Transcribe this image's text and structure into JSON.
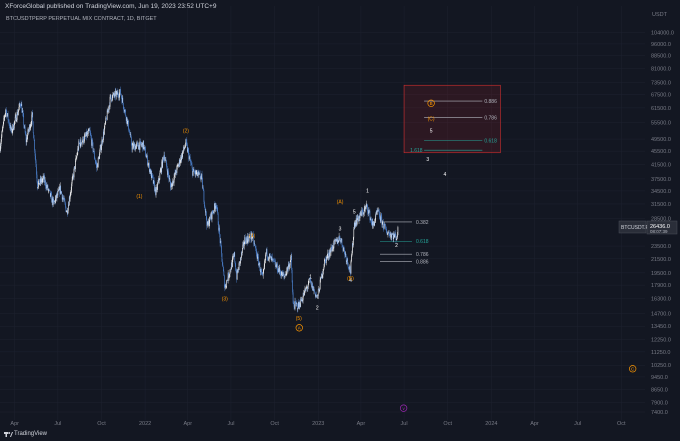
{
  "header": {
    "published_by": "XForceGlobal published on TradingView.com, Jun 19, 2023 23:52 UTC+9",
    "symbol_title": "BTCUSDTPERP PERPETUAL MIX CONTRACT, 1D, BITGET"
  },
  "footer": {
    "brand": "TradingView"
  },
  "price_tag": {
    "symbol": "BTCUSDT.P",
    "price": "26436.0",
    "countdown": "08:07:39"
  },
  "chart_data": {
    "type": "candlestick",
    "title": "BTCUSDTPERP PERPETUAL MIX CONTRACT, 1D, BITGET",
    "ylabel": "USDT",
    "y_scale": "log",
    "ylim": [
      7000,
      125000
    ],
    "xlim": [
      "2021-03-01",
      "2024-11-20"
    ],
    "y_ticks": [
      "104000.0",
      "96000.0",
      "88500.0",
      "81000.0",
      "73500.0",
      "67500.0",
      "61500.0",
      "55500.0",
      "49500.0",
      "45500.0",
      "41500.0",
      "37500.0",
      "34500.0",
      "31500.0",
      "28500.0",
      "23500.0",
      "21500.0",
      "19500.0",
      "17900.0",
      "16300.0",
      "14700.0",
      "13450.0",
      "12250.0",
      "11250.0",
      "10250.0",
      "9450.0",
      "8650.0",
      "7900.0",
      "7400.0"
    ],
    "x_ticks": [
      {
        "label": "Apr",
        "date": "2021-04-01"
      },
      {
        "label": "Jul",
        "date": "2021-07-01"
      },
      {
        "label": "Oct",
        "date": "2021-10-01"
      },
      {
        "label": "2022",
        "date": "2022-01-01"
      },
      {
        "label": "Apr",
        "date": "2022-04-01"
      },
      {
        "label": "Jul",
        "date": "2022-07-01"
      },
      {
        "label": "Oct",
        "date": "2022-10-01"
      },
      {
        "label": "2023",
        "date": "2023-01-01"
      },
      {
        "label": "Apr",
        "date": "2023-04-01"
      },
      {
        "label": "Jul",
        "date": "2023-07-01"
      },
      {
        "label": "Oct",
        "date": "2023-10-01"
      },
      {
        "label": "2024",
        "date": "2024-01-01"
      },
      {
        "label": "Apr",
        "date": "2024-04-01"
      },
      {
        "label": "Jul",
        "date": "2024-07-01"
      },
      {
        "label": "Oct",
        "date": "2024-10-01"
      }
    ],
    "price_path": [
      [
        "2021-03-01",
        47000
      ],
      [
        "2021-03-13",
        61000
      ],
      [
        "2021-03-25",
        52000
      ],
      [
        "2021-04-14",
        64000
      ],
      [
        "2021-04-25",
        49000
      ],
      [
        "2021-05-08",
        58000
      ],
      [
        "2021-05-19",
        36000
      ],
      [
        "2021-06-01",
        37500
      ],
      [
        "2021-06-22",
        31500
      ],
      [
        "2021-07-06",
        35000
      ],
      [
        "2021-07-20",
        29800
      ],
      [
        "2021-08-14",
        47500
      ],
      [
        "2021-09-06",
        52000
      ],
      [
        "2021-09-21",
        40500
      ],
      [
        "2021-10-20",
        66000
      ],
      [
        "2021-11-10",
        68500
      ],
      [
        "2021-11-27",
        54000
      ],
      [
        "2021-12-04",
        47000
      ],
      [
        "2021-12-28",
        47500
      ],
      [
        "2022-01-10",
        40500
      ],
      [
        "2022-01-24",
        34000
      ],
      [
        "2022-02-10",
        44500
      ],
      [
        "2022-02-24",
        35500
      ],
      [
        "2022-03-28",
        48000
      ],
      [
        "2022-04-11",
        39500
      ],
      [
        "2022-04-30",
        37800
      ],
      [
        "2022-05-12",
        27000
      ],
      [
        "2022-05-31",
        31800
      ],
      [
        "2022-06-18",
        17600
      ],
      [
        "2022-07-08",
        22000
      ],
      [
        "2022-07-13",
        19000
      ],
      [
        "2022-07-30",
        24500
      ],
      [
        "2022-08-15",
        25200
      ],
      [
        "2022-09-06",
        18600
      ],
      [
        "2022-09-13",
        22500
      ],
      [
        "2022-10-21",
        18900
      ],
      [
        "2022-11-05",
        21500
      ],
      [
        "2022-11-09",
        15600
      ],
      [
        "2022-11-21",
        15500
      ],
      [
        "2022-12-14",
        18400
      ],
      [
        "2022-12-30",
        16400
      ],
      [
        "2023-01-14",
        21000
      ],
      [
        "2023-02-01",
        23500
      ],
      [
        "2023-02-16",
        25000
      ],
      [
        "2023-03-10",
        19700
      ],
      [
        "2023-03-18",
        27500
      ],
      [
        "2023-04-14",
        31000
      ],
      [
        "2023-04-26",
        27000
      ],
      [
        "2023-05-06",
        29800
      ],
      [
        "2023-05-25",
        26000
      ],
      [
        "2023-06-15",
        25000
      ],
      [
        "2023-06-19",
        26436
      ]
    ],
    "fib_levels": [
      {
        "label": "0.382",
        "price": 27800,
        "color": "#b2b5be"
      },
      {
        "label": "0.618",
        "price": 24300,
        "color": "#26a69a"
      },
      {
        "label": "0.786",
        "price": 22200,
        "color": "#b2b5be"
      },
      {
        "label": "0.886",
        "price": 21100,
        "color": "#b2b5be"
      }
    ],
    "target_box": {
      "x0": "2023-07-01",
      "x1": "2024-01-20",
      "y_low": 45000,
      "y_high": 72000
    },
    "target_levels": [
      {
        "label": "0.886",
        "price": 64500,
        "color": "#b2b5be"
      },
      {
        "label": "0.786",
        "price": 57500,
        "color": "#b2b5be"
      },
      {
        "label": "0.618",
        "price": 49000,
        "color": "#26a69a"
      },
      {
        "label": "1.618",
        "price": 45800,
        "color": "#26a69a"
      }
    ],
    "wave_labels": [
      {
        "text": "(1)",
        "date": "2021-12-20",
        "price": 33200,
        "style": "plain",
        "color": "#ff9800"
      },
      {
        "text": "(2)",
        "date": "2022-03-28",
        "price": 52500,
        "style": "plain",
        "color": "#ff9800"
      },
      {
        "text": "(3)",
        "date": "2022-06-18",
        "price": 16300,
        "style": "plain",
        "color": "#ff9800"
      },
      {
        "text": "(4)",
        "date": "2022-08-15",
        "price": 25300,
        "style": "plain",
        "color": "#ff9800"
      },
      {
        "text": "(5)",
        "date": "2022-11-21",
        "price": 14200,
        "style": "plain",
        "color": "#ff9800"
      },
      {
        "text": "A",
        "date": "2022-11-22",
        "price": 13300,
        "style": "circle",
        "color": "#ff9800"
      },
      {
        "text": "1",
        "date": "2022-12-16",
        "price": 19000,
        "style": "plain",
        "color": "#ffffff"
      },
      {
        "text": "2",
        "date": "2022-12-30",
        "price": 15300,
        "style": "plain",
        "color": "#ffffff"
      },
      {
        "text": "3",
        "date": "2023-02-16",
        "price": 26500,
        "style": "plain",
        "color": "#ffffff"
      },
      {
        "text": "4",
        "date": "2023-03-10",
        "price": 18500,
        "style": "plain",
        "color": "#ffffff"
      },
      {
        "text": "5",
        "date": "2023-03-18",
        "price": 29800,
        "style": "plain",
        "color": "#ffffff"
      },
      {
        "text": "(A)",
        "date": "2023-02-16",
        "price": 32000,
        "style": "plain",
        "color": "#ff9800"
      },
      {
        "text": "(B)",
        "date": "2023-03-10",
        "price": 18800,
        "style": "plain",
        "color": "#ff9800"
      },
      {
        "text": "1",
        "date": "2023-04-15",
        "price": 34500,
        "style": "plain",
        "color": "#ffffff"
      },
      {
        "text": "2",
        "date": "2023-06-15",
        "price": 23600,
        "style": "plain",
        "color": "#ffffff"
      },
      {
        "text": "3",
        "date": "2023-08-20",
        "price": 43000,
        "style": "plain",
        "color": "#ffffff"
      },
      {
        "text": "4",
        "date": "2023-09-25",
        "price": 38800,
        "style": "plain",
        "color": "#ffffff"
      },
      {
        "text": "5",
        "date": "2023-08-27",
        "price": 52500,
        "style": "plain",
        "color": "#ffffff"
      },
      {
        "text": "(C)",
        "date": "2023-08-27",
        "price": 57000,
        "style": "plain",
        "color": "#ff9800"
      },
      {
        "text": "B",
        "date": "2023-08-27",
        "price": 63500,
        "style": "circle",
        "color": "#ff9800"
      },
      {
        "text": "C",
        "date": "2024-10-25",
        "price": 10000,
        "style": "circle",
        "color": "#ff9800"
      },
      {
        "text": "v",
        "date": "2023-06-30",
        "price": 7600,
        "style": "circle",
        "color": "#9c27b0"
      }
    ],
    "colors": {
      "background": "#131722",
      "candle_up": "#ffffff",
      "candle_down": "#4f86d6",
      "grid": "#1e2230",
      "axis_text": "#787b86",
      "target_box": "#d32f2f"
    },
    "grid": true,
    "legend": "none"
  }
}
